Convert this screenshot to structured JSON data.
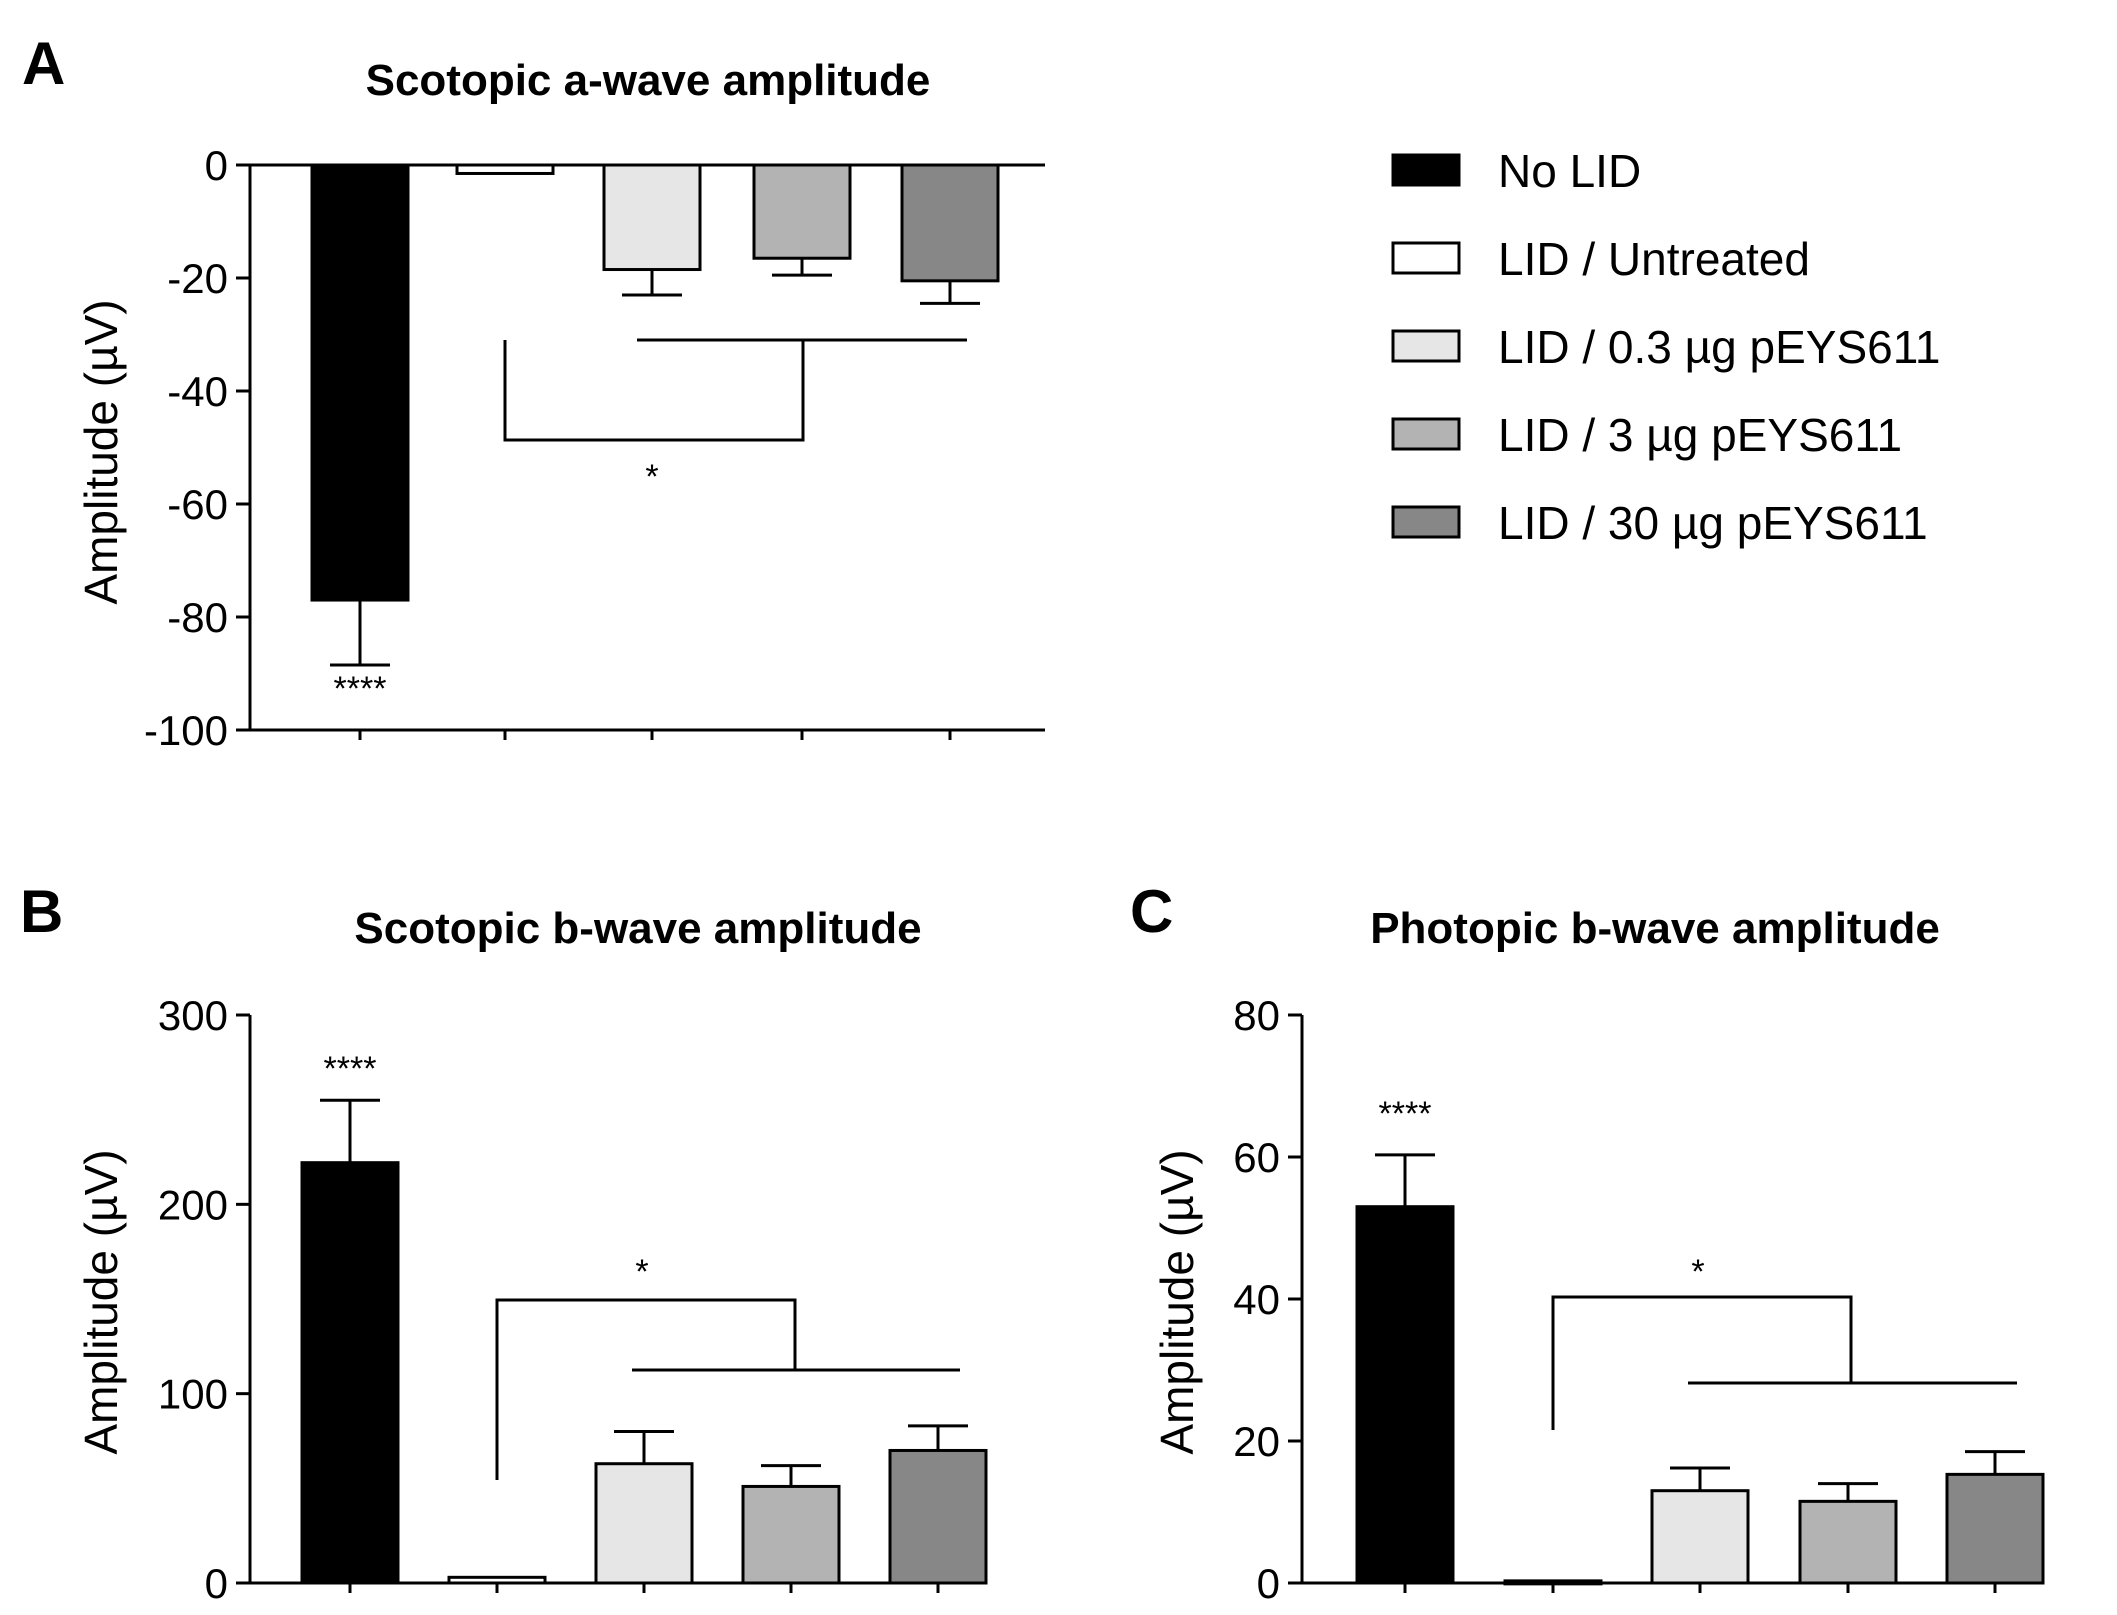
{
  "chart_data": [
    {
      "panel": "A",
      "type": "bar",
      "title": "Scotopic a-wave amplitude",
      "xlabel": "",
      "ylabel": "Amplitude (µV)",
      "ylim": [
        -100,
        0
      ],
      "yticks": [
        0,
        -20,
        -40,
        -60,
        -80,
        -100
      ],
      "categories": [
        "No LID",
        "LID / Untreated",
        "LID / 0.3 µg pEYS611",
        "LID / 3 µg pEYS611",
        "LID / 30 µg pEYS611"
      ],
      "values": [
        -77,
        -1.5,
        -18.5,
        -16.5,
        -20.5
      ],
      "errors": [
        11.5,
        0,
        4.5,
        3,
        4
      ],
      "significance": {
        "group_marker": "****",
        "bracket_marker": "*"
      }
    },
    {
      "panel": "B",
      "type": "bar",
      "title": "Scotopic b-wave amplitude",
      "xlabel": "",
      "ylabel": "Amplitude (µV)",
      "ylim": [
        0,
        300
      ],
      "yticks": [
        0,
        100,
        200,
        300
      ],
      "categories": [
        "No LID",
        "LID / Untreated",
        "LID / 0.3 µg pEYS611",
        "LID / 3 µg pEYS611",
        "LID / 30 µg pEYS611"
      ],
      "values": [
        222,
        3,
        63,
        51,
        70
      ],
      "errors": [
        33,
        0,
        17,
        11,
        13
      ],
      "significance": {
        "group_marker": "****",
        "bracket_marker": "*"
      }
    },
    {
      "panel": "C",
      "type": "bar",
      "title": "Photopic b-wave amplitude",
      "xlabel": "",
      "ylabel": "Amplitude (µV)",
      "ylim": [
        0,
        80
      ],
      "yticks": [
        0,
        20,
        40,
        60,
        80
      ],
      "categories": [
        "No LID",
        "LID / Untreated",
        "LID / 0.3 µg pEYS611",
        "LID / 3 µg pEYS611",
        "LID / 30 µg pEYS611"
      ],
      "values": [
        53,
        0.3,
        13,
        11.5,
        15.3
      ],
      "errors": [
        7.3,
        0,
        3.2,
        2.5,
        3.2
      ],
      "significance": {
        "group_marker": "****",
        "bracket_marker": "*"
      }
    }
  ],
  "legend": {
    "placement": "top-right",
    "items": [
      {
        "label": "No LID",
        "color": "#000000"
      },
      {
        "label": "LID / Untreated",
        "color": "#ffffff"
      },
      {
        "label": "LID / 0.3 µg pEYS611",
        "color": "#e6e6e6"
      },
      {
        "label": "LID / 3 µg pEYS611",
        "color": "#b3b3b3"
      },
      {
        "label": "LID / 30 µg pEYS611",
        "color": "#878787"
      }
    ]
  }
}
